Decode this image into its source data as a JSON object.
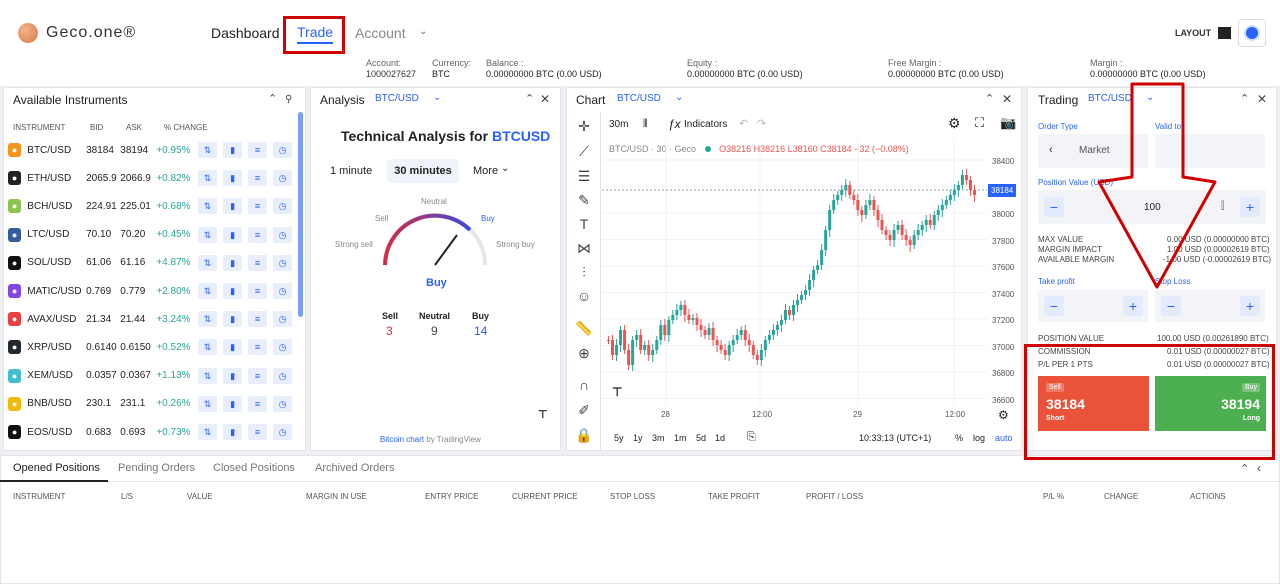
{
  "brand": {
    "name": "Geco.one®"
  },
  "nav": {
    "dashboard": "Dashboard",
    "trade": "Trade",
    "account": "Account",
    "layout": "LAYOUT"
  },
  "account_bar": {
    "account_label": "Account:",
    "account_value": "1000027627",
    "currency_label": "Currency:",
    "currency_value": "BTC",
    "balance_label": "Balance :",
    "balance_value": "0.00000000 BTC (0.00 USD)",
    "equity_label": "Equity :",
    "equity_value": "0.00000000 BTC (0.00 USD)",
    "free_margin_label": "Free Margin :",
    "free_margin_value": "0.00000000 BTC (0.00 USD)",
    "margin_label": "Margin :",
    "margin_value": "0.00000000 BTC (0.00 USD)"
  },
  "instruments": {
    "title": "Available Instruments",
    "headers": {
      "instrument": "INSTRUMENT",
      "bid": "BID",
      "ask": "ASK",
      "change": "% CHANGE"
    },
    "rows": [
      {
        "symbol": "BTC/USD",
        "bid": "38184",
        "ask": "38194",
        "change": "+0.95%",
        "color": "#f7931a"
      },
      {
        "symbol": "ETH/USD",
        "bid": "2065.9",
        "ask": "2066.9",
        "change": "+0.82%",
        "color": "#222222"
      },
      {
        "symbol": "BCH/USD",
        "bid": "224.91",
        "ask": "225.01",
        "change": "+0.68%",
        "color": "#8dc351"
      },
      {
        "symbol": "LTC/USD",
        "bid": "70.10",
        "ask": "70.20",
        "change": "+0.45%",
        "color": "#345d9d"
      },
      {
        "symbol": "SOL/USD",
        "bid": "61.06",
        "ask": "61.16",
        "change": "+4.87%",
        "color": "#111111"
      },
      {
        "symbol": "MATIC/USD",
        "bid": "0.769",
        "ask": "0.779",
        "change": "+2.80%",
        "color": "#8247e5"
      },
      {
        "symbol": "AVAX/USD",
        "bid": "21.34",
        "ask": "21.44",
        "change": "+3.24%",
        "color": "#e84142"
      },
      {
        "symbol": "XRP/USD",
        "bid": "0.6140",
        "ask": "0.6150",
        "change": "+0.52%",
        "color": "#23292f"
      },
      {
        "symbol": "XEM/USD",
        "bid": "0.0357",
        "ask": "0.0367",
        "change": "+1.13%",
        "color": "#41bfd1"
      },
      {
        "symbol": "BNB/USD",
        "bid": "230.1",
        "ask": "231.1",
        "change": "+0.26%",
        "color": "#f0b90b"
      },
      {
        "symbol": "EOS/USD",
        "bid": "0.683",
        "ask": "0.693",
        "change": "+0.73%",
        "color": "#111111"
      }
    ]
  },
  "analysis": {
    "title": "Analysis",
    "pair": "BTC/USD",
    "heading": "Technical Analysis for",
    "heading_pair": "BTCUSD",
    "tabs": [
      "1 minute",
      "30 minutes",
      "More"
    ],
    "gauge": {
      "neutral": "Neutral",
      "sell": "Sell",
      "buy": "Buy",
      "strong_sell": "Strong sell",
      "strong_buy": "Strong buy",
      "result": "Buy"
    },
    "counts": {
      "sell_label": "Sell",
      "sell": "3",
      "neutral_label": "Neutral",
      "neutral": "9",
      "buy_label": "Buy",
      "buy": "14"
    },
    "footer_link": "Bitcoin chart",
    "footer_by": "by TradingView"
  },
  "chart": {
    "title": "Chart",
    "pair": "BTC/USD",
    "interval": "30m",
    "indicators": "Indicators",
    "legend": "BTC/USD · 30 · Geco",
    "ohlc": "O38216 H38216 L38160 C38184 −32 (−0.08%)",
    "price_labels": [
      "38400",
      "38200",
      "38000",
      "37800",
      "37600",
      "37400",
      "37200",
      "37000",
      "36800",
      "36600"
    ],
    "last_price": "38184",
    "time_labels": [
      "28",
      "12:00",
      "29",
      "12:00"
    ],
    "ranges": [
      "5y",
      "1y",
      "3m",
      "1m",
      "5d",
      "1d"
    ],
    "clock": "10:33:13 (UTC+1)",
    "pct": "%",
    "log": "log",
    "auto": "auto"
  },
  "trading": {
    "title": "Trading",
    "pair": "BTC/USD",
    "order_type_label": "Order Type",
    "order_type": "Market",
    "valid_to_label": "Valid to",
    "position_value_label": "Position Value (USD)",
    "position_value": "100",
    "max_value_label": "MAX VALUE",
    "max_value": "0.00 USD (0.00000000 BTC)",
    "margin_impact_label": "MARGIN IMPACT",
    "margin_impact": "1.00 USD (0.00002619 BTC)",
    "available_margin_label": "AVAILABLE MARGIN",
    "available_margin": "-1.00 USD (-0.00002619 BTC)",
    "take_profit_label": "Take profit",
    "stop_loss_label": "Stop Loss",
    "position_value2_label": "POSITION VALUE",
    "position_value2": "100.00 USD (0.00261890 BTC)",
    "commission_label": "COMMISSION",
    "commission": "0.01 USD (0.00000027 BTC)",
    "pl_label": "P/L PER 1 PTS",
    "pl": "0.01 USD (0.00000027 BTC)",
    "sell_tag": "Sell",
    "sell_price": "38184",
    "sell_sub": "Short",
    "buy_tag": "Buy",
    "buy_price": "38194",
    "buy_sub": "Long"
  },
  "positions": {
    "tabs": [
      "Opened Positions",
      "Pending Orders",
      "Closed Positions",
      "Archived Orders"
    ],
    "columns": [
      "INSTRUMENT",
      "L/S",
      "VALUE",
      "MARGIN IN USE",
      "ENTRY PRICE",
      "CURRENT PRICE",
      "STOP LOSS",
      "TAKE PROFIT",
      "PROFIT / LOSS",
      "P/L %",
      "CHANGE",
      "ACTIONS"
    ]
  },
  "colors": {
    "accent": "#2962ff",
    "up": "#26a69a",
    "down": "#ef5350",
    "sell_bg": "#e8533a",
    "buy_bg": "#4caf50",
    "annotation": "#d00000"
  }
}
